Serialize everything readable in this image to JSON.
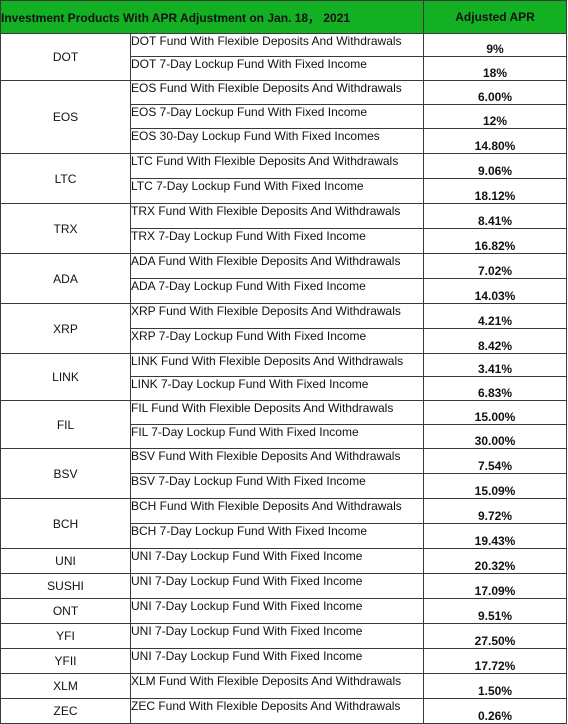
{
  "header": {
    "title": "Investment Products With APR Adjustment on Jan. 18， 2021",
    "apr_column": "Adjusted APR"
  },
  "colors": {
    "header_bg": "#14b024",
    "header_text": "#ffffff",
    "border": "#3a3a3a"
  },
  "groups": [
    {
      "token": "DOT",
      "rows": [
        {
          "product": "DOT Fund With Flexible Deposits And Withdrawals",
          "apr": "9%"
        },
        {
          "product": "DOT 7-Day Lockup Fund With Fixed Income",
          "apr": "18%"
        }
      ]
    },
    {
      "token": "EOS",
      "rows": [
        {
          "product": "EOS Fund With Flexible Deposits And Withdrawals",
          "apr": "6.00%"
        },
        {
          "product": "EOS 7-Day Lockup Fund With Fixed Income",
          "apr": "12%"
        },
        {
          "product": "EOS 30-Day Lockup Fund With Fixed Incomes",
          "apr": "14.80%"
        }
      ]
    },
    {
      "token": "LTC",
      "rows": [
        {
          "product": "LTC Fund With Flexible Deposits And Withdrawals",
          "apr": "9.06%"
        },
        {
          "product": "LTC  7-Day Lockup Fund With Fixed Income",
          "apr": "18.12%"
        }
      ]
    },
    {
      "token": "TRX",
      "rows": [
        {
          "product": "TRX Fund With Flexible Deposits And Withdrawals",
          "apr": "8.41%"
        },
        {
          "product": "TRX  7-Day Lockup Fund With Fixed Income",
          "apr": "16.82%"
        }
      ]
    },
    {
      "token": "ADA",
      "rows": [
        {
          "product": "ADA Fund With Flexible Deposits And Withdrawals",
          "apr": "7.02%"
        },
        {
          "product": "ADA  7-Day Lockup Fund With Fixed Income",
          "apr": "14.03%"
        }
      ]
    },
    {
      "token": "XRP",
      "rows": [
        {
          "product": "XRP Fund With Flexible Deposits And Withdrawals",
          "apr": "4.21%"
        },
        {
          "product": "XRP 7-Day Lockup Fund With Fixed Income",
          "apr": "8.42%"
        }
      ]
    },
    {
      "token": "LINK",
      "rows": [
        {
          "product": "LINK Fund With Flexible Deposits And Withdrawals",
          "apr": "3.41%"
        },
        {
          "product": "LINK 7-Day Lockup Fund With Fixed Income",
          "apr": "6.83%"
        }
      ]
    },
    {
      "token": "FIL",
      "rows": [
        {
          "product": "FIL Fund With Flexible Deposits And Withdrawals",
          "apr": "15.00%"
        },
        {
          "product": "FIL 7-Day Lockup Fund With Fixed Income",
          "apr": "30.00%"
        }
      ]
    },
    {
      "token": "BSV",
      "rows": [
        {
          "product": "BSV Fund With Flexible Deposits And Withdrawals",
          "apr": "7.54%"
        },
        {
          "product": "BSV  7-Day Lockup Fund With Fixed Income",
          "apr": "15.09%"
        }
      ]
    },
    {
      "token": "BCH",
      "rows": [
        {
          "product": "BCH Fund With Flexible Deposits And Withdrawals",
          "apr": "9.72%"
        },
        {
          "product": "BCH  7-Day Lockup Fund With Fixed Income",
          "apr": "19.43%"
        }
      ]
    },
    {
      "token": "UNI",
      "rows": [
        {
          "product": "UNI  7-Day Lockup Fund With Fixed Income",
          "apr": "20.32%"
        }
      ]
    },
    {
      "token": "SUSHI",
      "rows": [
        {
          "product": "UNI  7-Day Lockup Fund With Fixed Income",
          "apr": "17.09%"
        }
      ]
    },
    {
      "token": "ONT",
      "rows": [
        {
          "product": "UNI  7-Day Lockup Fund With Fixed Income",
          "apr": "9.51%"
        }
      ]
    },
    {
      "token": "YFI",
      "rows": [
        {
          "product": "UNI  7-Day Lockup Fund With Fixed Income",
          "apr": "27.50%"
        }
      ]
    },
    {
      "token": "YFII",
      "rows": [
        {
          "product": "UNI  7-Day Lockup Fund With Fixed Income",
          "apr": "17.72%"
        }
      ]
    },
    {
      "token": "XLM",
      "rows": [
        {
          "product": "XLM Fund With Flexible Deposits And Withdrawals",
          "apr": "1.50%"
        }
      ]
    },
    {
      "token": "ZEC",
      "rows": [
        {
          "product": "ZEC Fund With Flexible Deposits And Withdrawals",
          "apr": "0.26%"
        }
      ]
    }
  ]
}
